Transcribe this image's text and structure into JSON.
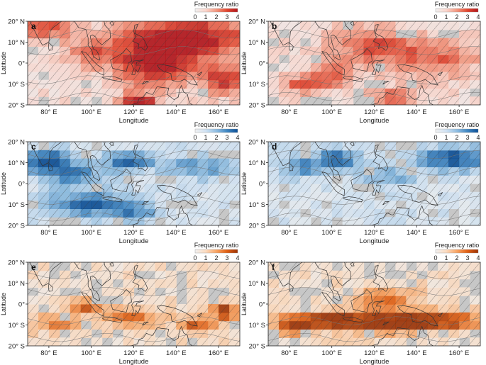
{
  "figure": {
    "colorbar_title": "Frequency ratio",
    "colorbar_ticks": [
      "0",
      "1",
      "2",
      "3",
      "4"
    ],
    "xlabel": "Longitude",
    "ylabel": "Latitude",
    "x_ticks": [
      "80° E",
      "100° E",
      "120° E",
      "140° E",
      "160° E"
    ],
    "y_ticks": [
      "20° N",
      "10° N",
      "0°",
      "10° S",
      "20° S"
    ]
  },
  "palettes": {
    "red": [
      "#f0f0f0",
      "#fbd7ce",
      "#f4977f",
      "#e2462f",
      "#b2151b"
    ],
    "blue": [
      "#f0f0f0",
      "#d0e2f3",
      "#8fbde1",
      "#3f86c2",
      "#0b4e95"
    ],
    "orange": [
      "#f0f0f0",
      "#fcdbc0",
      "#f9a463",
      "#e05f13",
      "#9c3305"
    ]
  },
  "chart_data": [
    {
      "panel": "a",
      "type": "heatmap",
      "palette": "red",
      "xlabel": "Longitude",
      "ylabel": "Latitude",
      "x_range": [
        70,
        170
      ],
      "y_range": [
        -20,
        20
      ],
      "colorbar": {
        "title": "Frequency ratio",
        "range": [
          0,
          4
        ]
      },
      "hotspots": [
        {
          "lon": 145,
          "lat": 12,
          "ratio": 3.8,
          "sx": 22,
          "sy": 7
        },
        {
          "lon": 130,
          "lat": -1,
          "ratio": 3.5,
          "sx": 12,
          "sy": 7
        },
        {
          "lon": 122,
          "lat": -18,
          "ratio": 3.6,
          "sx": 6,
          "sy": 2.5
        },
        {
          "lon": 78,
          "lat": 17,
          "ratio": 2.5,
          "sx": 8,
          "sy": 4
        },
        {
          "lon": 100,
          "lat": 5,
          "ratio": 2.0,
          "sx": 8,
          "sy": 5
        },
        {
          "lon": 162,
          "lat": -8,
          "ratio": 3.0,
          "sx": 7,
          "sy": 5
        }
      ]
    },
    {
      "panel": "b",
      "type": "heatmap",
      "palette": "red",
      "xlabel": "Longitude",
      "ylabel": "Latitude",
      "x_range": [
        70,
        170
      ],
      "y_range": [
        -20,
        20
      ],
      "colorbar": {
        "title": "Frequency ratio",
        "range": [
          0,
          4
        ]
      },
      "hotspots": [
        {
          "lon": 120,
          "lat": 8,
          "ratio": 2.3,
          "sx": 14,
          "sy": 6
        },
        {
          "lon": 87,
          "lat": -10,
          "ratio": 2.2,
          "sx": 7,
          "sy": 3
        },
        {
          "lon": 100,
          "lat": -5,
          "ratio": 2.0,
          "sx": 8,
          "sy": 4
        },
        {
          "lon": 150,
          "lat": 2,
          "ratio": 1.8,
          "sx": 14,
          "sy": 6
        },
        {
          "lon": 130,
          "lat": -16,
          "ratio": 2.4,
          "sx": 8,
          "sy": 3
        }
      ]
    },
    {
      "panel": "c",
      "type": "heatmap",
      "palette": "blue",
      "xlabel": "Longitude",
      "ylabel": "Latitude",
      "x_range": [
        70,
        170
      ],
      "y_range": [
        -20,
        20
      ],
      "colorbar": {
        "title": "Frequency ratio",
        "range": [
          0,
          4
        ]
      },
      "hotspots": [
        {
          "lon": 80,
          "lat": 11,
          "ratio": 3.4,
          "sx": 8,
          "sy": 4
        },
        {
          "lon": 118,
          "lat": 11,
          "ratio": 3.2,
          "sx": 8,
          "sy": 3
        },
        {
          "lon": 98,
          "lat": -10,
          "ratio": 3.0,
          "sx": 14,
          "sy": 4
        },
        {
          "lon": 92,
          "lat": 4,
          "ratio": 2.4,
          "sx": 10,
          "sy": 4
        },
        {
          "lon": 150,
          "lat": 8,
          "ratio": 2.0,
          "sx": 12,
          "sy": 4
        },
        {
          "lon": 120,
          "lat": -14,
          "ratio": 2.0,
          "sx": 8,
          "sy": 3
        }
      ]
    },
    {
      "panel": "d",
      "type": "heatmap",
      "palette": "blue",
      "xlabel": "Longitude",
      "ylabel": "Latitude",
      "x_range": [
        70,
        170
      ],
      "y_range": [
        -20,
        20
      ],
      "colorbar": {
        "title": "Frequency ratio",
        "range": [
          0,
          4
        ]
      },
      "hotspots": [
        {
          "lon": 158,
          "lat": 12,
          "ratio": 3.4,
          "sx": 12,
          "sy": 4
        },
        {
          "lon": 103,
          "lat": 12,
          "ratio": 2.9,
          "sx": 8,
          "sy": 3
        },
        {
          "lon": 85,
          "lat": 8,
          "ratio": 2.2,
          "sx": 8,
          "sy": 3
        },
        {
          "lon": 125,
          "lat": 3,
          "ratio": 1.6,
          "sx": 10,
          "sy": 4
        }
      ]
    },
    {
      "panel": "e",
      "type": "heatmap",
      "palette": "orange",
      "xlabel": "Longitude",
      "ylabel": "Latitude",
      "x_range": [
        70,
        170
      ],
      "y_range": [
        -20,
        20
      ],
      "colorbar": {
        "title": "Frequency ratio",
        "range": [
          0,
          4
        ]
      },
      "hotspots": [
        {
          "lon": 163,
          "lat": -4,
          "ratio": 3.5,
          "sx": 4,
          "sy": 3
        },
        {
          "lon": 96,
          "lat": -1,
          "ratio": 2.8,
          "sx": 5,
          "sy": 2
        },
        {
          "lon": 150,
          "lat": -10,
          "ratio": 2.5,
          "sx": 6,
          "sy": 3
        },
        {
          "lon": 120,
          "lat": -6,
          "ratio": 2.0,
          "sx": 10,
          "sy": 3
        },
        {
          "lon": 82,
          "lat": -9,
          "ratio": 1.8,
          "sx": 8,
          "sy": 3
        }
      ]
    },
    {
      "panel": "f",
      "type": "heatmap",
      "palette": "orange",
      "xlabel": "Longitude",
      "ylabel": "Latitude",
      "x_range": [
        70,
        170
      ],
      "y_range": [
        -20,
        20
      ],
      "colorbar": {
        "title": "Frequency ratio",
        "range": [
          0,
          4
        ]
      },
      "hotspots": [
        {
          "lon": 100,
          "lat": -8,
          "ratio": 3.6,
          "sx": 14,
          "sy": 3
        },
        {
          "lon": 150,
          "lat": -8,
          "ratio": 3.6,
          "sx": 14,
          "sy": 3
        },
        {
          "lon": 125,
          "lat": -9,
          "ratio": 3.0,
          "sx": 10,
          "sy": 3
        },
        {
          "lon": 125,
          "lat": 2,
          "ratio": 2.4,
          "sx": 10,
          "sy": 4
        },
        {
          "lon": 82,
          "lat": -10,
          "ratio": 2.6,
          "sx": 6,
          "sy": 3
        }
      ]
    }
  ]
}
